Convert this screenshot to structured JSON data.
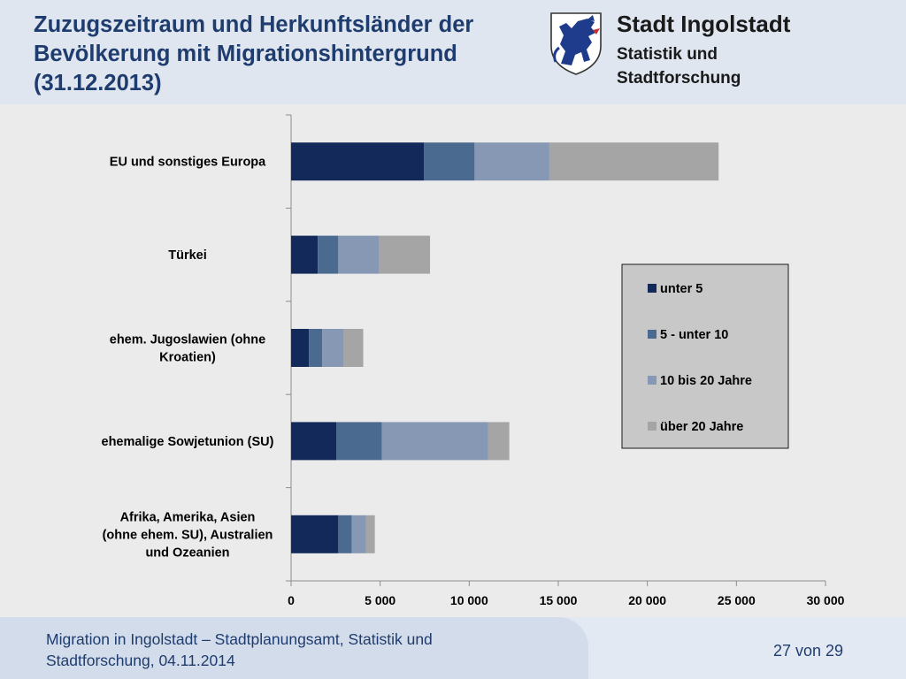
{
  "header": {
    "title_line1": "Zuzugszeitraum und Herkunftsländer der",
    "title_line2": "Bevölkerung mit Migrationshintergrund",
    "title_line3": "(31.12.2013)",
    "org_name": "Stadt Ingolstadt",
    "org_sub_line1": "Statistik und",
    "org_sub_line2": "Stadtforschung",
    "crest_icon": "ingolstadt-panther-crest-icon"
  },
  "chart_data": {
    "type": "bar",
    "orientation": "horizontal",
    "stacked": true,
    "categories": [
      [
        "EU und sonstiges Europa"
      ],
      [
        "Türkei"
      ],
      [
        "ehem. Jugoslawien (ohne",
        "Kroatien)"
      ],
      [
        "ehemalige Sowjetunion (SU)"
      ],
      [
        "Afrika, Amerika, Asien",
        "(ohne ehem. SU), Australien",
        "und Ozeanien"
      ]
    ],
    "series": [
      {
        "name": "unter 5",
        "color": "#12295a",
        "values": [
          7450,
          1500,
          1000,
          2550,
          2650
        ]
      },
      {
        "name": "5 - unter 10",
        "color": "#4a6a8f",
        "values": [
          2850,
          1150,
          750,
          2550,
          750
        ]
      },
      {
        "name": "10 bis 20 Jahre",
        "color": "#8798b4",
        "values": [
          4200,
          2300,
          1200,
          5950,
          800
        ]
      },
      {
        "name": "über 20 Jahre",
        "color": "#a5a5a5",
        "values": [
          9500,
          2850,
          1100,
          1200,
          500
        ]
      }
    ],
    "xlim": [
      0,
      30000
    ],
    "xticks": [
      0,
      5000,
      10000,
      15000,
      20000,
      25000,
      30000
    ],
    "xtick_labels": [
      "0",
      "5 000",
      "10 000",
      "15 000",
      "20 000",
      "25 000",
      "30 000"
    ],
    "xlabel": "",
    "ylabel": "",
    "grid": false,
    "legend_position": "right"
  },
  "footer": {
    "text_line1": "Migration in Ingolstadt – Stadtplanungsamt, Statistik und",
    "text_line2": "Stadtforschung, 04.11.2014",
    "page": "27 von 29"
  }
}
